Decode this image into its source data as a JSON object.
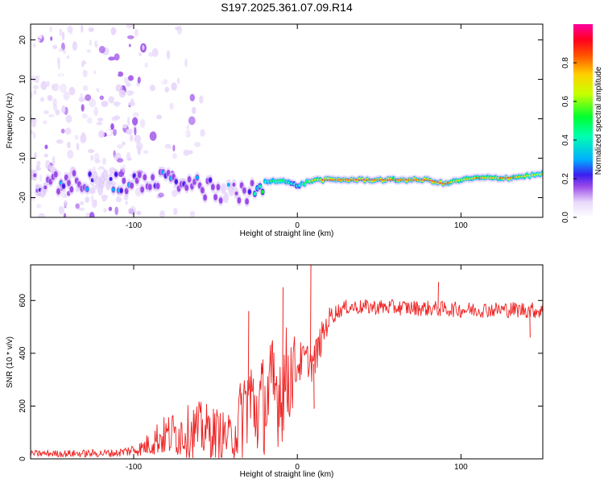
{
  "title": "S197.2025.361.07.09.R14",
  "chart_data": [
    {
      "type": "heatmap",
      "xlabel": "Height of straight line (km)",
      "ylabel": "Frequency (Hz)",
      "xlim": [
        -163,
        150
      ],
      "ylim": [
        -25,
        24
      ],
      "x_ticks": [
        -100,
        0,
        100
      ],
      "y_ticks": [
        -20,
        -10,
        0,
        10,
        20
      ],
      "colorbar": {
        "label": "Normalized spectral amplitude",
        "range": [
          0,
          1
        ],
        "ticks": [
          "0.0",
          "0.2",
          "0.4",
          "0.6",
          "0.8"
        ],
        "tick_values": [
          0.0,
          0.2,
          0.4,
          0.6,
          0.8
        ],
        "colors": [
          "#ffffff",
          "#c9a8f5",
          "#7a22e6",
          "#1a1aff",
          "#00d8ff",
          "#00ff40",
          "#ffff00",
          "#ff8000",
          "#ff0000",
          "#ff00a0"
        ]
      },
      "ridge": {
        "x": [
          -160,
          -140,
          -120,
          -100,
          -80,
          -60,
          -40,
          -30,
          -20,
          -10,
          0,
          10,
          20,
          40,
          60,
          80,
          90,
          100,
          110,
          120,
          130,
          140,
          150
        ],
        "frequency": [
          -16.5,
          -16,
          -16.5,
          -16,
          -16,
          -17.5,
          -19,
          -19,
          -16,
          -15.5,
          -17,
          -15.5,
          -15.5,
          -15.5,
          -15.5,
          -15.5,
          -16.5,
          -15.5,
          -15,
          -15,
          -15,
          -14.5,
          -14
        ],
        "peak_amplitude": [
          0.25,
          0.3,
          0.25,
          0.3,
          0.3,
          0.3,
          0.25,
          0.3,
          0.5,
          0.6,
          0.4,
          0.8,
          0.9,
          0.9,
          0.85,
          0.9,
          0.9,
          0.7,
          0.85,
          0.8,
          0.9,
          0.7,
          0.65
        ]
      }
    },
    {
      "type": "line",
      "series": [
        {
          "name": "SNR",
          "color": "#ee2222"
        }
      ],
      "xlabel": "Height of straight line (km)",
      "ylabel": "SNR (10 * v/v)",
      "xlim": [
        -163,
        150
      ],
      "ylim": [
        0,
        735
      ],
      "x_ticks": [
        -100,
        0,
        100
      ],
      "y_ticks": [
        0,
        200,
        400,
        600
      ],
      "envelope": {
        "x": [
          -163,
          -130,
          -110,
          -95,
          -85,
          -75,
          -60,
          -50,
          -40,
          -35,
          -30,
          -25,
          -15,
          -10,
          -5,
          0,
          5,
          10,
          15,
          20,
          25,
          30,
          50,
          80,
          100,
          120,
          140,
          150
        ],
        "mean": [
          20,
          20,
          22,
          40,
          80,
          95,
          110,
          100,
          80,
          140,
          240,
          180,
          250,
          270,
          320,
          360,
          380,
          360,
          460,
          540,
          560,
          575,
          575,
          570,
          565,
          565,
          565,
          560
        ],
        "spread": [
          12,
          15,
          15,
          30,
          70,
          90,
          110,
          100,
          80,
          160,
          200,
          180,
          220,
          220,
          200,
          90,
          60,
          80,
          60,
          40,
          30,
          28,
          30,
          30,
          30,
          30,
          32,
          30
        ]
      },
      "spikes": [
        {
          "x": 8,
          "value": 735
        },
        {
          "x": -9,
          "value": 650
        },
        {
          "x": -30,
          "value": 560
        },
        {
          "x": 86,
          "value": 670
        },
        {
          "x": 142,
          "value": 460
        },
        {
          "x": 10,
          "value": 190
        }
      ]
    }
  ]
}
